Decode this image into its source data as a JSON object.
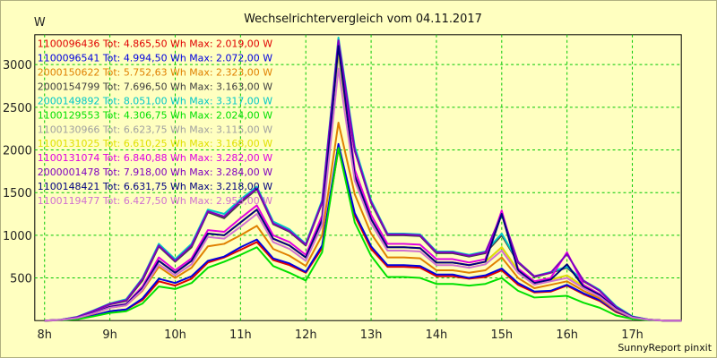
{
  "chart_data": {
    "type": "line",
    "title": "Wechselrichtervergleich vom 04.11.2017",
    "ylabel": "W",
    "footer": "SunnyReport pinxit",
    "ylim": [
      0,
      3350
    ],
    "xlim": [
      7.85,
      17.75
    ],
    "yticks": [
      500,
      1000,
      1500,
      2000,
      2500,
      3000
    ],
    "xticks": [
      8,
      9,
      10,
      11,
      12,
      13,
      14,
      15,
      16,
      17
    ],
    "xtick_labels": [
      "8h",
      "9h",
      "10h",
      "11h",
      "12h",
      "13h",
      "14h",
      "15h",
      "16h",
      "17h"
    ],
    "grid": true,
    "legend_position": "top-left",
    "x": [
      8.0,
      8.25,
      8.5,
      8.75,
      9.0,
      9.25,
      9.5,
      9.75,
      10.0,
      10.25,
      10.5,
      10.75,
      11.0,
      11.25,
      11.5,
      11.75,
      12.0,
      12.25,
      12.5,
      12.75,
      13.0,
      13.25,
      13.5,
      13.75,
      14.0,
      14.25,
      14.5,
      14.75,
      15.0,
      15.25,
      15.5,
      15.75,
      16.0,
      16.25,
      16.5,
      16.75,
      17.0,
      17.25,
      17.5,
      17.75
    ],
    "series": [
      {
        "legend": "1100096436 Tot: 4.865,50 Wh Max: 2.019,00 W",
        "color": "#e00000",
        "values": [
          0,
          5,
          20,
          60,
          110,
          130,
          240,
          460,
          410,
          490,
          680,
          740,
          830,
          920,
          710,
          650,
          560,
          850,
          2010,
          1230,
          840,
          630,
          630,
          620,
          520,
          520,
          490,
          510,
          590,
          420,
          330,
          340,
          410,
          310,
          230,
          100,
          30,
          10,
          0,
          0
        ]
      },
      {
        "legend": "1100096541 Tot: 4.994,50 Wh Max: 2.072,00 W",
        "color": "#0000e0",
        "values": [
          0,
          5,
          20,
          60,
          110,
          130,
          260,
          490,
          440,
          520,
          700,
          750,
          860,
          950,
          730,
          670,
          570,
          880,
          2070,
          1260,
          870,
          650,
          650,
          640,
          540,
          540,
          500,
          530,
          610,
          440,
          340,
          350,
          420,
          320,
          240,
          110,
          30,
          10,
          0,
          0
        ]
      },
      {
        "legend": "2000150622 Tot: 5.752,63 Wh Max: 2.323,00 W",
        "color": "#e08000",
        "values": [
          0,
          5,
          30,
          80,
          150,
          180,
          350,
          630,
          500,
          620,
          870,
          900,
          1000,
          1110,
          840,
          760,
          640,
          1000,
          2320,
          1480,
          1020,
          740,
          740,
          730,
          590,
          590,
          560,
          590,
          740,
          500,
          380,
          420,
          460,
          350,
          260,
          120,
          35,
          10,
          0,
          0
        ]
      },
      {
        "legend": "2000154799 Tot: 7.696,50 Wh Max: 3.163,00 W",
        "color": "#404040",
        "values": [
          0,
          10,
          40,
          110,
          190,
          230,
          470,
          870,
          690,
          860,
          1270,
          1200,
          1380,
          1540,
          1130,
          1040,
          880,
          1380,
          3160,
          1990,
          1380,
          1000,
          1000,
          990,
          790,
          790,
          750,
          790,
          1000,
          680,
          510,
          560,
          620,
          460,
          350,
          160,
          45,
          12,
          0,
          0
        ]
      },
      {
        "legend": "2000149892 Tot: 8.051,00 Wh Max: 3.317,00 W",
        "color": "#00c8c8",
        "values": [
          0,
          10,
          45,
          120,
          200,
          250,
          500,
          900,
          720,
          900,
          1300,
          1250,
          1420,
          1570,
          1160,
          1070,
          900,
          1410,
          3317,
          2040,
          1410,
          1020,
          1020,
          1010,
          810,
          810,
          770,
          810,
          1020,
          690,
          520,
          570,
          630,
          470,
          360,
          170,
          50,
          12,
          0,
          0
        ]
      },
      {
        "legend": "1100129553 Tot: 4.306,75 Wh Max: 2.024,00 W",
        "color": "#00e000",
        "values": [
          0,
          5,
          15,
          50,
          90,
          110,
          200,
          400,
          370,
          440,
          620,
          690,
          770,
          860,
          640,
          560,
          470,
          800,
          2024,
          1150,
          760,
          510,
          510,
          500,
          430,
          430,
          410,
          430,
          500,
          350,
          270,
          280,
          290,
          210,
          150,
          60,
          20,
          5,
          0,
          0
        ]
      },
      {
        "legend": "1100130966 Tot: 6.623,75 Wh Max: 3.115,00 W",
        "color": "#a0a0a0",
        "values": [
          0,
          8,
          30,
          90,
          160,
          190,
          380,
          700,
          560,
          700,
          1020,
          1000,
          1150,
          1300,
          960,
          880,
          740,
          1180,
          3115,
          1700,
          1190,
          860,
          860,
          850,
          680,
          680,
          650,
          690,
          860,
          590,
          440,
          480,
          530,
          400,
          300,
          140,
          40,
          10,
          0,
          0
        ]
      },
      {
        "legend": "1100131025 Tot: 6.610,25 Wh Max: 3.168,00 W",
        "color": "#e0e000",
        "values": [
          0,
          8,
          30,
          90,
          160,
          190,
          380,
          700,
          560,
          700,
          1020,
          1000,
          1150,
          1300,
          960,
          880,
          740,
          1180,
          3168,
          1700,
          1190,
          860,
          860,
          850,
          680,
          680,
          650,
          690,
          860,
          590,
          440,
          480,
          530,
          400,
          300,
          140,
          40,
          10,
          0,
          0
        ]
      },
      {
        "legend": "1100131074 Tot: 6.840,88 Wh Max: 3.282,00 W",
        "color": "#e000e0",
        "values": [
          0,
          8,
          32,
          95,
          165,
          195,
          400,
          740,
          590,
          730,
          1060,
          1040,
          1200,
          1350,
          1000,
          920,
          770,
          1230,
          3282,
          1770,
          1240,
          900,
          900,
          890,
          720,
          720,
          680,
          720,
          1290,
          610,
          460,
          500,
          800,
          420,
          310,
          145,
          40,
          10,
          0,
          0
        ]
      },
      {
        "legend": "2000001478 Tot: 7.918,00 Wh Max: 3.284,00 W",
        "color": "#8000c0",
        "values": [
          0,
          10,
          42,
          115,
          195,
          240,
          490,
          880,
          700,
          880,
          1280,
          1220,
          1400,
          1550,
          1140,
          1050,
          890,
          1390,
          3284,
          2000,
          1390,
          1010,
          1010,
          1000,
          800,
          800,
          760,
          800,
          1250,
          690,
          520,
          560,
          780,
          470,
          350,
          160,
          45,
          12,
          0,
          0
        ]
      },
      {
        "legend": "1100148421 Tot: 6.631,75 Wh Max: 3.218,00 W",
        "color": "#000080",
        "values": [
          0,
          8,
          30,
          90,
          160,
          190,
          380,
          700,
          560,
          700,
          1020,
          1000,
          1150,
          1300,
          960,
          880,
          740,
          1180,
          3218,
          1700,
          1190,
          860,
          860,
          850,
          680,
          680,
          650,
          690,
          1250,
          590,
          440,
          480,
          660,
          400,
          300,
          140,
          40,
          10,
          0,
          0
        ]
      },
      {
        "legend": "1100119477 Tot: 6.427,50 Wh Max: 2.953,00 W",
        "color": "#d070d0",
        "values": [
          0,
          8,
          30,
          85,
          150,
          180,
          360,
          660,
          530,
          660,
          980,
          960,
          1100,
          1250,
          920,
          840,
          700,
          1120,
          2953,
          1640,
          1140,
          820,
          820,
          810,
          650,
          650,
          620,
          660,
          820,
          560,
          420,
          460,
          500,
          380,
          280,
          130,
          35,
          10,
          0,
          0
        ]
      }
    ]
  }
}
